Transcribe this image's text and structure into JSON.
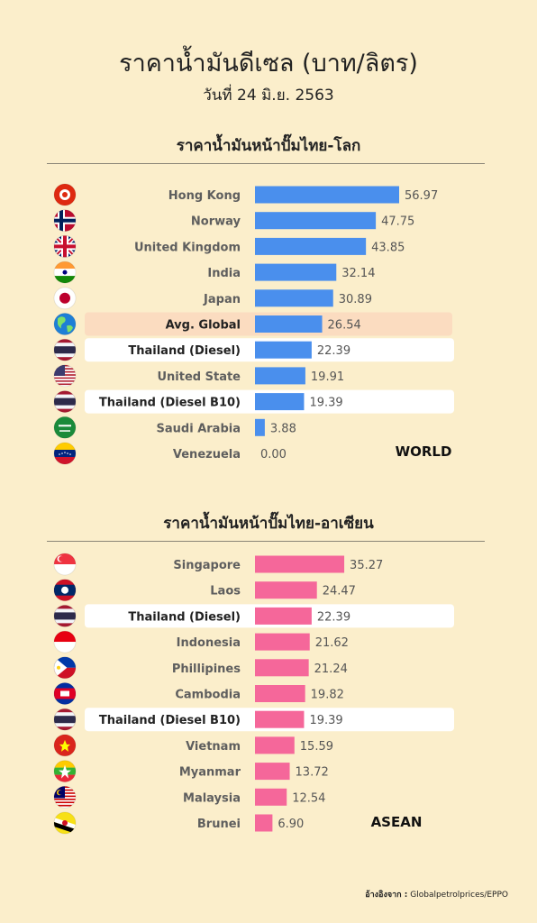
{
  "title": "ราคาน้ำมันดีเซล (บาท/ลิตร)",
  "subtitle": "วันที่ 24 มิ.ย. 2563",
  "source": {
    "label": "อ้างอิงจาก :",
    "text": "Globalpetrolprices/EPPO"
  },
  "colors": {
    "background": "#fbeecb",
    "world_bar": "#4a8fed",
    "asean_bar": "#f5679a",
    "highlight_row": "#fbdcc0",
    "thailand_row": "#ffffff"
  },
  "chart_data": [
    {
      "type": "bar",
      "orientation": "horizontal",
      "title": "ราคาน้ำมันหน้าปั๊มไทย-โลก",
      "tag": "WORLD",
      "categories": [
        "Hong Kong",
        "Norway",
        "United Kingdom",
        "India",
        "Japan",
        "Avg. Global",
        "Thailand (Diesel)",
        "United State",
        "Thailand (Diesel B10)",
        "Saudi Arabia",
        "Venezuela"
      ],
      "values": [
        56.97,
        47.75,
        43.85,
        32.14,
        30.89,
        26.54,
        22.39,
        19.91,
        19.39,
        3.88,
        0.0
      ],
      "value_labels": [
        "56.97",
        "47.75",
        "43.85",
        "32.14",
        "30.89",
        "26.54",
        "22.39",
        "19.91",
        "19.39",
        "3.88",
        "0.00"
      ],
      "flags": [
        "hong-kong-flag-icon",
        "norway-flag-icon",
        "united-kingdom-flag-icon",
        "india-flag-icon",
        "japan-flag-icon",
        "globe-icon",
        "thailand-flag-icon",
        "usa-flag-icon",
        "thailand-flag-icon",
        "saudi-arabia-flag-icon",
        "venezuela-flag-icon"
      ],
      "highlight": [
        "",
        "",
        "",
        "",
        "",
        "avg",
        "thai",
        "",
        "thai",
        "",
        ""
      ]
    },
    {
      "type": "bar",
      "orientation": "horizontal",
      "title": "ราคาน้ำมันหน้าปั๊มไทย-อาเซียน",
      "tag": "ASEAN",
      "categories": [
        "Singapore",
        "Laos",
        "Thailand (Diesel)",
        "Indonesia",
        "Phillipines",
        "Cambodia",
        "Thailand (Diesel B10)",
        "Vietnam",
        "Myanmar",
        "Malaysia",
        "Brunei"
      ],
      "values": [
        35.27,
        24.47,
        22.39,
        21.62,
        21.24,
        19.82,
        19.39,
        15.59,
        13.72,
        12.54,
        6.9
      ],
      "value_labels": [
        "35.27",
        "24.47",
        "22.39",
        "21.62",
        "21.24",
        "19.82",
        "19.39",
        "15.59",
        "13.72",
        "12.54",
        "6.90"
      ],
      "flags": [
        "singapore-flag-icon",
        "laos-flag-icon",
        "thailand-flag-icon",
        "indonesia-flag-icon",
        "philippines-flag-icon",
        "cambodia-flag-icon",
        "thailand-flag-icon",
        "vietnam-flag-icon",
        "myanmar-flag-icon",
        "malaysia-flag-icon",
        "brunei-flag-icon"
      ],
      "highlight": [
        "",
        "",
        "thai",
        "",
        "",
        "",
        "thai",
        "",
        "",
        "",
        ""
      ]
    }
  ]
}
